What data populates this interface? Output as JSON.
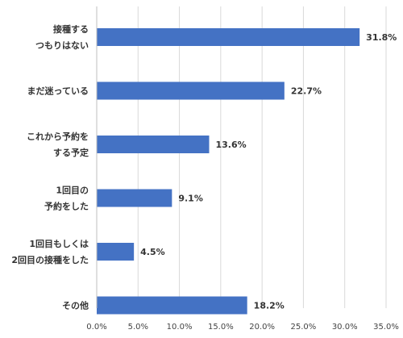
{
  "chart_data": {
    "type": "bar",
    "orientation": "horizontal",
    "title": "",
    "xlabel": "",
    "ylabel": "",
    "categories": [
      [
        "接種する",
        "つもりはない"
      ],
      [
        "まだ迷っている"
      ],
      [
        "これから予約を",
        "する予定"
      ],
      [
        "1回目の",
        "予約をした"
      ],
      [
        "1回目もしくは",
        "2回目の接種をした"
      ],
      [
        "その他"
      ]
    ],
    "values": [
      31.8,
      22.7,
      13.6,
      9.1,
      4.5,
      18.2
    ],
    "value_labels": [
      "31.8%",
      "22.7%",
      "13.6%",
      "9.1%",
      "4.5%",
      "18.2%"
    ],
    "xlim": [
      0,
      35
    ],
    "x_ticks": [
      0,
      5,
      10,
      15,
      20,
      25,
      30,
      35
    ],
    "x_tick_labels": [
      "0.0%",
      "5.0%",
      "10.0%",
      "15.0%",
      "20.0%",
      "25.0%",
      "30.0%",
      "35.0%"
    ],
    "grid": "vertical",
    "bar_color": "#4472C4",
    "grid_color": "#D9D9D9",
    "legend": "none"
  }
}
